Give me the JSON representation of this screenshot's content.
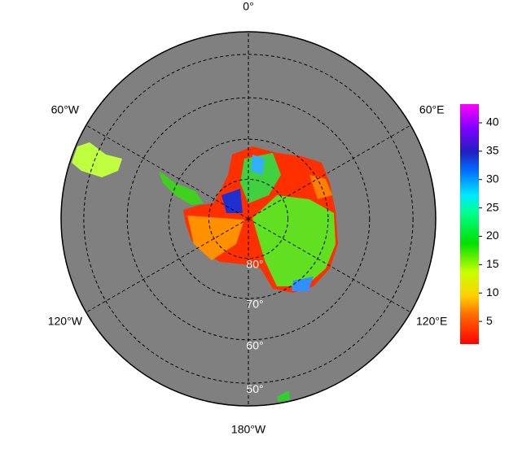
{
  "chart_data": {
    "type": "polar-map",
    "meridians": [
      {
        "value": 0,
        "label": "0°"
      },
      {
        "value": 60,
        "label": "60°E"
      },
      {
        "value": 120,
        "label": "120°E"
      },
      {
        "value": 180,
        "label": "180°W"
      },
      {
        "value": -120,
        "label": "120°W"
      },
      {
        "value": -60,
        "label": "60°W"
      }
    ],
    "parallels": [
      {
        "value": 80,
        "label": "80°"
      },
      {
        "value": 70,
        "label": "70°"
      },
      {
        "value": 60,
        "label": "60°"
      },
      {
        "value": 50,
        "label": "50°"
      }
    ],
    "outer_latitude": 45,
    "colorbar_lim": [
      1,
      43.3
    ],
    "colorbar_ticks": [
      5,
      10,
      15,
      20,
      25,
      30,
      35,
      40
    ]
  }
}
